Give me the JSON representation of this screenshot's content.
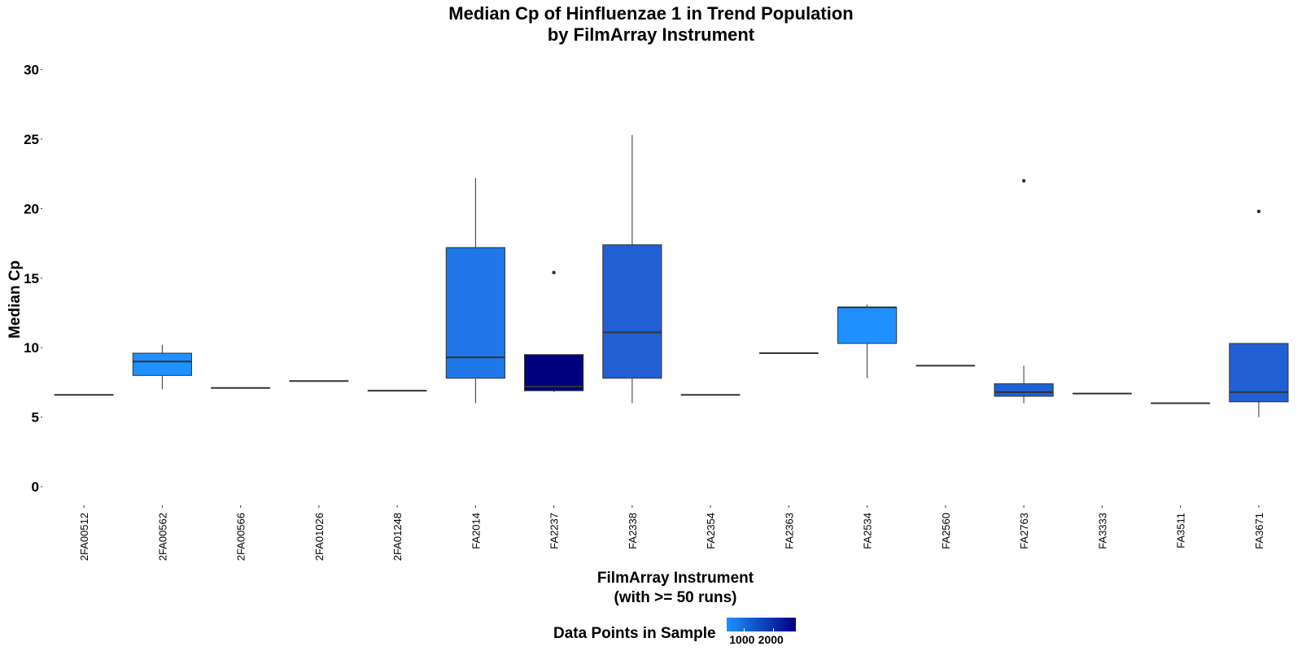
{
  "chart_data": {
    "type": "box",
    "title": [
      "Median Cp of Hinfluenzae 1 in Trend Population",
      "by FilmArray Instrument"
    ],
    "xlabel": [
      "FilmArray Instrument",
      "(with >= 50 runs)"
    ],
    "ylabel": "Median Cp",
    "ylim": [
      -0.5,
      30.5
    ],
    "yticks": [
      0,
      5,
      10,
      15,
      20,
      25,
      30
    ],
    "grid": false,
    "legend": {
      "title": "Data Points in Sample",
      "position": "bottom",
      "type": "colorbar",
      "low_color": "#1e90ff",
      "high_color": "#00007f",
      "range": [
        400,
        2800
      ],
      "ticks": [
        1000,
        2000
      ],
      "tick_labels": [
        "1000",
        "2000"
      ]
    },
    "categories": [
      "2FA00512",
      "2FA00562",
      "2FA00566",
      "2FA01026",
      "2FA01248",
      "FA2014",
      "FA2237",
      "FA2338",
      "FA2354",
      "FA2363",
      "FA2534",
      "FA2560",
      "FA2763",
      "FA3333",
      "FA3511",
      "FA3671"
    ],
    "boxes": [
      {
        "category": "2FA00512",
        "min": 6.6,
        "q1": 6.6,
        "median": 6.6,
        "q3": 6.6,
        "max": 6.6,
        "outliers": [],
        "color": "#1e90ff"
      },
      {
        "category": "2FA00562",
        "min": 7.0,
        "q1": 8.0,
        "median": 9.0,
        "q3": 9.6,
        "max": 10.2,
        "outliers": [],
        "color": "#1e90ff"
      },
      {
        "category": "2FA00566",
        "min": 7.1,
        "q1": 7.1,
        "median": 7.1,
        "q3": 7.1,
        "max": 7.1,
        "outliers": [],
        "color": "#1e90ff"
      },
      {
        "category": "2FA01026",
        "min": 7.6,
        "q1": 7.6,
        "median": 7.6,
        "q3": 7.6,
        "max": 7.6,
        "outliers": [],
        "color": "#1e90ff"
      },
      {
        "category": "2FA01248",
        "min": 6.9,
        "q1": 6.9,
        "median": 6.9,
        "q3": 6.9,
        "max": 6.9,
        "outliers": [],
        "color": "#1e90ff"
      },
      {
        "category": "FA2014",
        "min": 6.0,
        "q1": 7.8,
        "median": 9.3,
        "q3": 17.2,
        "max": 22.2,
        "outliers": [],
        "color": "#1f77e8"
      },
      {
        "category": "FA2237",
        "min": 6.8,
        "q1": 6.9,
        "median": 7.2,
        "q3": 9.5,
        "max": 9.5,
        "outliers": [
          15.4
        ],
        "color": "#00007f"
      },
      {
        "category": "FA2338",
        "min": 6.0,
        "q1": 7.8,
        "median": 11.1,
        "q3": 17.4,
        "max": 25.3,
        "outliers": [],
        "color": "#215fd4"
      },
      {
        "category": "FA2354",
        "min": 6.6,
        "q1": 6.6,
        "median": 6.6,
        "q3": 6.6,
        "max": 6.6,
        "outliers": [],
        "color": "#1e90ff"
      },
      {
        "category": "FA2363",
        "min": 9.6,
        "q1": 9.6,
        "median": 9.6,
        "q3": 9.6,
        "max": 9.6,
        "outliers": [],
        "color": "#1e90ff"
      },
      {
        "category": "FA2534",
        "min": 7.8,
        "q1": 10.3,
        "median": 12.9,
        "q3": 12.9,
        "max": 13.1,
        "outliers": [],
        "color": "#1e90ff"
      },
      {
        "category": "FA2560",
        "min": 8.7,
        "q1": 8.7,
        "median": 8.7,
        "q3": 8.7,
        "max": 8.7,
        "outliers": [],
        "color": "#1e90ff"
      },
      {
        "category": "FA2763",
        "min": 6.0,
        "q1": 6.5,
        "median": 6.8,
        "q3": 7.4,
        "max": 8.7,
        "outliers": [
          22.0
        ],
        "color": "#215fd4"
      },
      {
        "category": "FA3333",
        "min": 6.7,
        "q1": 6.7,
        "median": 6.7,
        "q3": 6.7,
        "max": 6.7,
        "outliers": [],
        "color": "#1e90ff"
      },
      {
        "category": "FA3511",
        "min": 6.0,
        "q1": 6.0,
        "median": 6.0,
        "q3": 6.0,
        "max": 6.0,
        "outliers": [],
        "color": "#1e90ff"
      },
      {
        "category": "FA3671",
        "min": 5.0,
        "q1": 6.1,
        "median": 6.8,
        "q3": 10.3,
        "max": 10.3,
        "outliers": [
          19.8
        ],
        "color": "#215fd4"
      }
    ]
  }
}
